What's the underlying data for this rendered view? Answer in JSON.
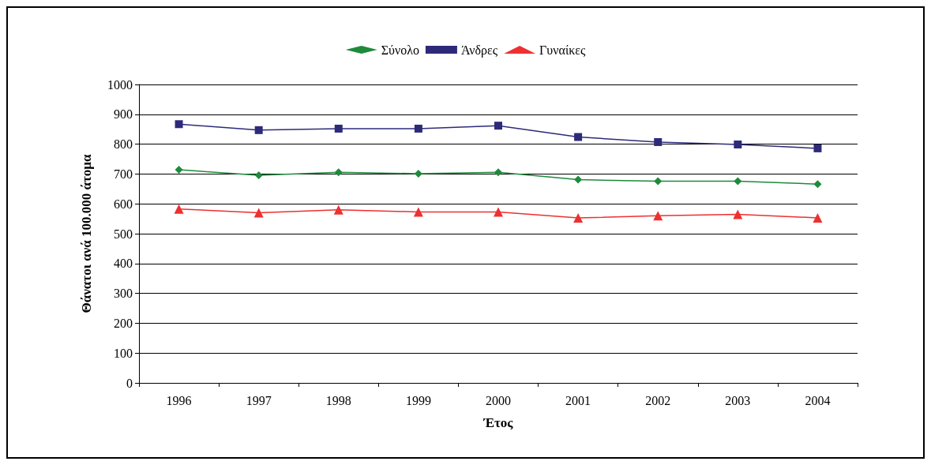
{
  "chart_data": {
    "type": "line",
    "xlabel": "Έτος",
    "ylabel": "Θάνατοι ανά 100.000 άτομα",
    "categories": [
      "1996",
      "1997",
      "1998",
      "1999",
      "2000",
      "2001",
      "2002",
      "2003",
      "2004"
    ],
    "series": [
      {
        "name": "Σύνολο",
        "color": "#1e8a3c",
        "marker": "diamond",
        "values": [
          714,
          696,
          706,
          701,
          706,
          681,
          676,
          676,
          666
        ]
      },
      {
        "name": "Άνδρες",
        "color": "#2e2a7a",
        "marker": "square",
        "values": [
          867,
          847,
          852,
          852,
          862,
          824,
          807,
          799,
          786
        ]
      },
      {
        "name": "Γυναίκες",
        "color": "#ee3030",
        "marker": "triangle",
        "values": [
          583,
          570,
          580,
          573,
          573,
          553,
          560,
          565,
          553
        ]
      }
    ],
    "ylim": [
      0,
      1000
    ],
    "yticks": [
      0,
      100,
      200,
      300,
      400,
      500,
      600,
      700,
      800,
      900,
      1000
    ],
    "grid": "y",
    "legend": "top",
    "line_style": "solid"
  }
}
